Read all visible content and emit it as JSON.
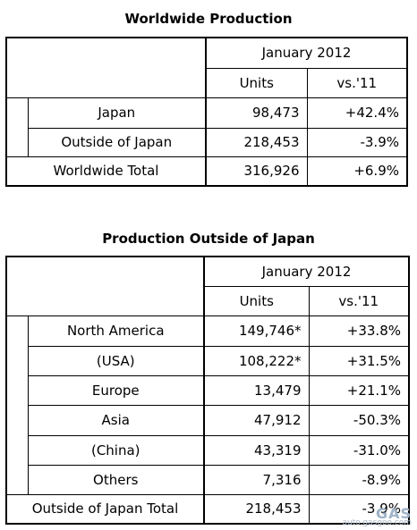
{
  "worldwide": {
    "title": "Worldwide Production",
    "period": "January 2012",
    "col_units": "Units",
    "col_vs": "vs.'11",
    "rows": [
      {
        "label": "Japan",
        "units": "98,473",
        "vs": "+42.4%"
      },
      {
        "label": "Outside of Japan",
        "units": "218,453",
        "vs": "-3.9%"
      }
    ],
    "total": {
      "label": "Worldwide Total",
      "units": "316,926",
      "vs": "+6.9%"
    }
  },
  "outside": {
    "title": "Production Outside of Japan",
    "period": "January 2012",
    "col_units": "Units",
    "col_vs": "vs.'11",
    "rows": [
      {
        "label": "North America",
        "units": "149,746*",
        "vs": "+33.8%"
      },
      {
        "label": "(USA)",
        "units": "108,222*",
        "vs": "+31.5%"
      },
      {
        "label": "Europe",
        "units": "13,479",
        "vs": "+21.1%"
      },
      {
        "label": "Asia",
        "units": "47,912",
        "vs": "-50.3%"
      },
      {
        "label": "(China)",
        "units": "43,319",
        "vs": "-31.0%"
      },
      {
        "label": "Others",
        "units": "7,316",
        "vs": "-8.9%"
      }
    ],
    "total": {
      "label": "Outside of Japan Total",
      "units": "218,453",
      "vs": "-3.9%"
    }
  },
  "watermark": {
    "text": "auto.gasgoo.com"
  }
}
